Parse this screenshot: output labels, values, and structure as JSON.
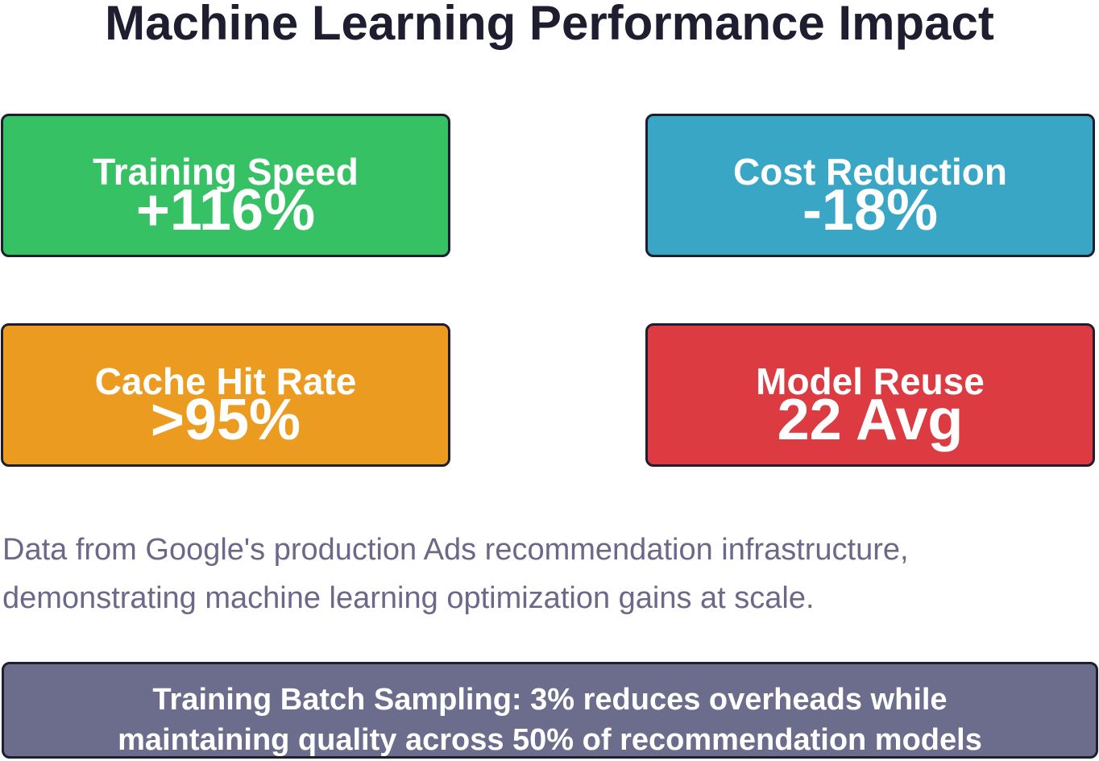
{
  "title": "Machine Learning Performance Impact",
  "cards": [
    {
      "label": "Training Speed",
      "value": "+116%",
      "color": "#36c165"
    },
    {
      "label": "Cost Reduction",
      "value": "-18%",
      "color": "#38a6c4"
    },
    {
      "label": "Cache Hit Rate",
      "value": ">95%",
      "color": "#eb9c20"
    },
    {
      "label": "Model Reuse",
      "value": "22 Avg",
      "color": "#dc3b42"
    }
  ],
  "description": [
    "Data from Google's production Ads recommendation infrastructure,",
    "demonstrating machine learning optimization gains at scale."
  ],
  "footer": [
    "Training Batch Sampling: 3% reduces overheads while",
    "maintaining quality across 50% of recommendation models"
  ]
}
